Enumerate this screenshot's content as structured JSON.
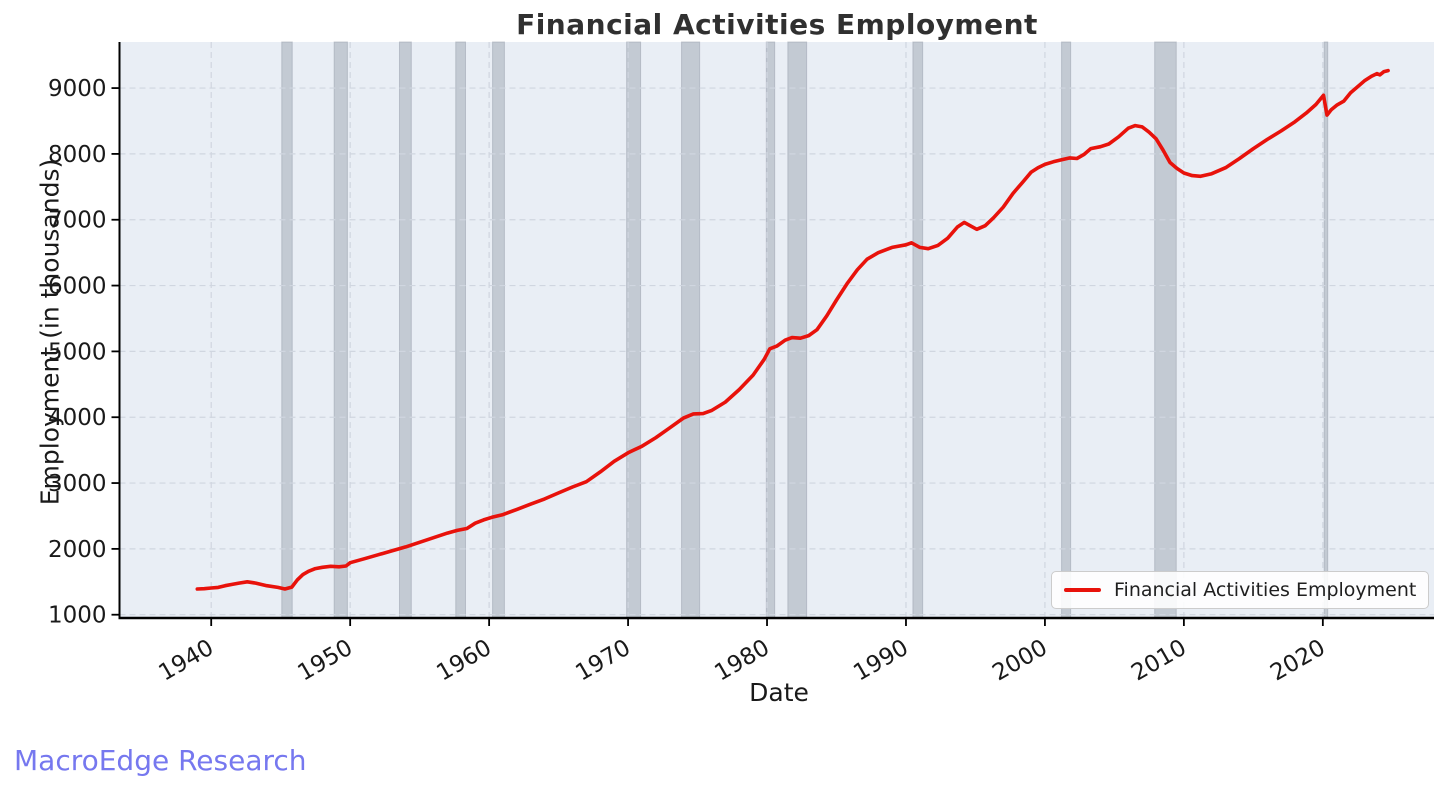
{
  "page": {
    "background_color": "#ffffff"
  },
  "watermark": {
    "text": "MacroEdge Research",
    "color": "#7678ef"
  },
  "chart_data": {
    "type": "line",
    "title": "Financial Activities Employment",
    "xlabel": "Date",
    "ylabel": "Employment (in thousands)",
    "x_ticks": [
      1940,
      1950,
      1960,
      1970,
      1980,
      1990,
      2000,
      2010,
      2020
    ],
    "y_ticks": [
      1000,
      2000,
      3000,
      4000,
      5000,
      6000,
      7000,
      8000,
      9000
    ],
    "xlim": [
      1933.4,
      2028.0
    ],
    "ylim": [
      950,
      9700
    ],
    "grid": true,
    "grid_style": "dashed",
    "legend_position": "lower right",
    "colors": {
      "line": "#e8120b",
      "plot_background": "#e9eef5",
      "grid": "#d0d6e0",
      "recession_band": "#9aa2ae",
      "spine": "#000000",
      "tick_label": "#1a1a1a",
      "title": "#303030"
    },
    "recession_bands": [
      [
        1945.08,
        1945.83
      ],
      [
        1948.85,
        1949.8
      ],
      [
        1953.55,
        1954.4
      ],
      [
        1957.6,
        1958.3
      ],
      [
        1960.25,
        1961.1
      ],
      [
        1969.9,
        1970.9
      ],
      [
        1973.85,
        1975.15
      ],
      [
        1979.95,
        1980.55
      ],
      [
        1981.5,
        1982.85
      ],
      [
        1990.5,
        1991.2
      ],
      [
        2001.2,
        2001.85
      ],
      [
        2007.9,
        2009.45
      ],
      [
        2020.1,
        2020.35
      ]
    ],
    "series": [
      {
        "name": "Financial Activities Employment",
        "color": "#e8120b",
        "points": [
          [
            1939.0,
            1390
          ],
          [
            1939.5,
            1395
          ],
          [
            1940.0,
            1405
          ],
          [
            1940.5,
            1415
          ],
          [
            1941.0,
            1440
          ],
          [
            1941.5,
            1460
          ],
          [
            1942.0,
            1480
          ],
          [
            1942.6,
            1500
          ],
          [
            1943.2,
            1480
          ],
          [
            1944.0,
            1440
          ],
          [
            1944.8,
            1415
          ],
          [
            1945.3,
            1390
          ],
          [
            1945.8,
            1420
          ],
          [
            1946.2,
            1530
          ],
          [
            1946.6,
            1610
          ],
          [
            1947.0,
            1660
          ],
          [
            1947.5,
            1700
          ],
          [
            1948.0,
            1720
          ],
          [
            1948.6,
            1735
          ],
          [
            1949.2,
            1728
          ],
          [
            1949.7,
            1740
          ],
          [
            1950.0,
            1790
          ],
          [
            1951.0,
            1850
          ],
          [
            1952.0,
            1910
          ],
          [
            1953.0,
            1970
          ],
          [
            1954.0,
            2030
          ],
          [
            1955.0,
            2100
          ],
          [
            1956.0,
            2170
          ],
          [
            1957.0,
            2240
          ],
          [
            1957.7,
            2280
          ],
          [
            1958.4,
            2310
          ],
          [
            1959.0,
            2390
          ],
          [
            1959.6,
            2440
          ],
          [
            1960.2,
            2480
          ],
          [
            1961.0,
            2520
          ],
          [
            1962.0,
            2600
          ],
          [
            1963.0,
            2680
          ],
          [
            1964.0,
            2760
          ],
          [
            1965.0,
            2850
          ],
          [
            1966.0,
            2940
          ],
          [
            1967.0,
            3020
          ],
          [
            1968.0,
            3170
          ],
          [
            1969.0,
            3330
          ],
          [
            1970.0,
            3460
          ],
          [
            1971.0,
            3560
          ],
          [
            1972.0,
            3690
          ],
          [
            1973.0,
            3840
          ],
          [
            1974.0,
            3990
          ],
          [
            1974.7,
            4050
          ],
          [
            1975.4,
            4055
          ],
          [
            1976.0,
            4100
          ],
          [
            1977.0,
            4230
          ],
          [
            1978.0,
            4420
          ],
          [
            1979.0,
            4640
          ],
          [
            1979.8,
            4880
          ],
          [
            1980.2,
            5040
          ],
          [
            1980.7,
            5080
          ],
          [
            1981.3,
            5170
          ],
          [
            1981.8,
            5210
          ],
          [
            1982.4,
            5200
          ],
          [
            1983.0,
            5240
          ],
          [
            1983.6,
            5330
          ],
          [
            1984.3,
            5540
          ],
          [
            1985.0,
            5780
          ],
          [
            1985.8,
            6040
          ],
          [
            1986.5,
            6240
          ],
          [
            1987.2,
            6400
          ],
          [
            1988.0,
            6500
          ],
          [
            1989.0,
            6580
          ],
          [
            1990.0,
            6620
          ],
          [
            1990.4,
            6650
          ],
          [
            1991.0,
            6580
          ],
          [
            1991.6,
            6560
          ],
          [
            1992.3,
            6610
          ],
          [
            1993.0,
            6720
          ],
          [
            1993.7,
            6890
          ],
          [
            1994.2,
            6960
          ],
          [
            1994.7,
            6900
          ],
          [
            1995.1,
            6855
          ],
          [
            1995.7,
            6910
          ],
          [
            1996.3,
            7030
          ],
          [
            1997.0,
            7190
          ],
          [
            1997.7,
            7400
          ],
          [
            1998.4,
            7570
          ],
          [
            1999.0,
            7720
          ],
          [
            1999.5,
            7790
          ],
          [
            2000.0,
            7840
          ],
          [
            2000.6,
            7880
          ],
          [
            2001.2,
            7910
          ],
          [
            2001.8,
            7940
          ],
          [
            2002.3,
            7930
          ],
          [
            2002.8,
            7990
          ],
          [
            2003.3,
            8080
          ],
          [
            2004.0,
            8110
          ],
          [
            2004.6,
            8150
          ],
          [
            2005.3,
            8260
          ],
          [
            2006.0,
            8390
          ],
          [
            2006.5,
            8430
          ],
          [
            2007.0,
            8410
          ],
          [
            2007.5,
            8330
          ],
          [
            2008.0,
            8230
          ],
          [
            2008.5,
            8060
          ],
          [
            2009.0,
            7870
          ],
          [
            2009.5,
            7780
          ],
          [
            2010.0,
            7710
          ],
          [
            2010.6,
            7670
          ],
          [
            2011.2,
            7660
          ],
          [
            2012.0,
            7700
          ],
          [
            2013.0,
            7790
          ],
          [
            2014.0,
            7930
          ],
          [
            2015.0,
            8080
          ],
          [
            2016.0,
            8220
          ],
          [
            2017.0,
            8350
          ],
          [
            2018.0,
            8490
          ],
          [
            2018.8,
            8620
          ],
          [
            2019.5,
            8750
          ],
          [
            2020.05,
            8890
          ],
          [
            2020.3,
            8590
          ],
          [
            2020.6,
            8670
          ],
          [
            2021.0,
            8740
          ],
          [
            2021.5,
            8800
          ],
          [
            2022.0,
            8930
          ],
          [
            2022.5,
            9020
          ],
          [
            2023.0,
            9110
          ],
          [
            2023.5,
            9180
          ],
          [
            2023.9,
            9220
          ],
          [
            2024.1,
            9200
          ],
          [
            2024.4,
            9250
          ],
          [
            2024.7,
            9265
          ]
        ]
      }
    ],
    "legend": {
      "entries": [
        {
          "label": "Financial Activities Employment",
          "color": "#e8120b"
        }
      ]
    }
  }
}
